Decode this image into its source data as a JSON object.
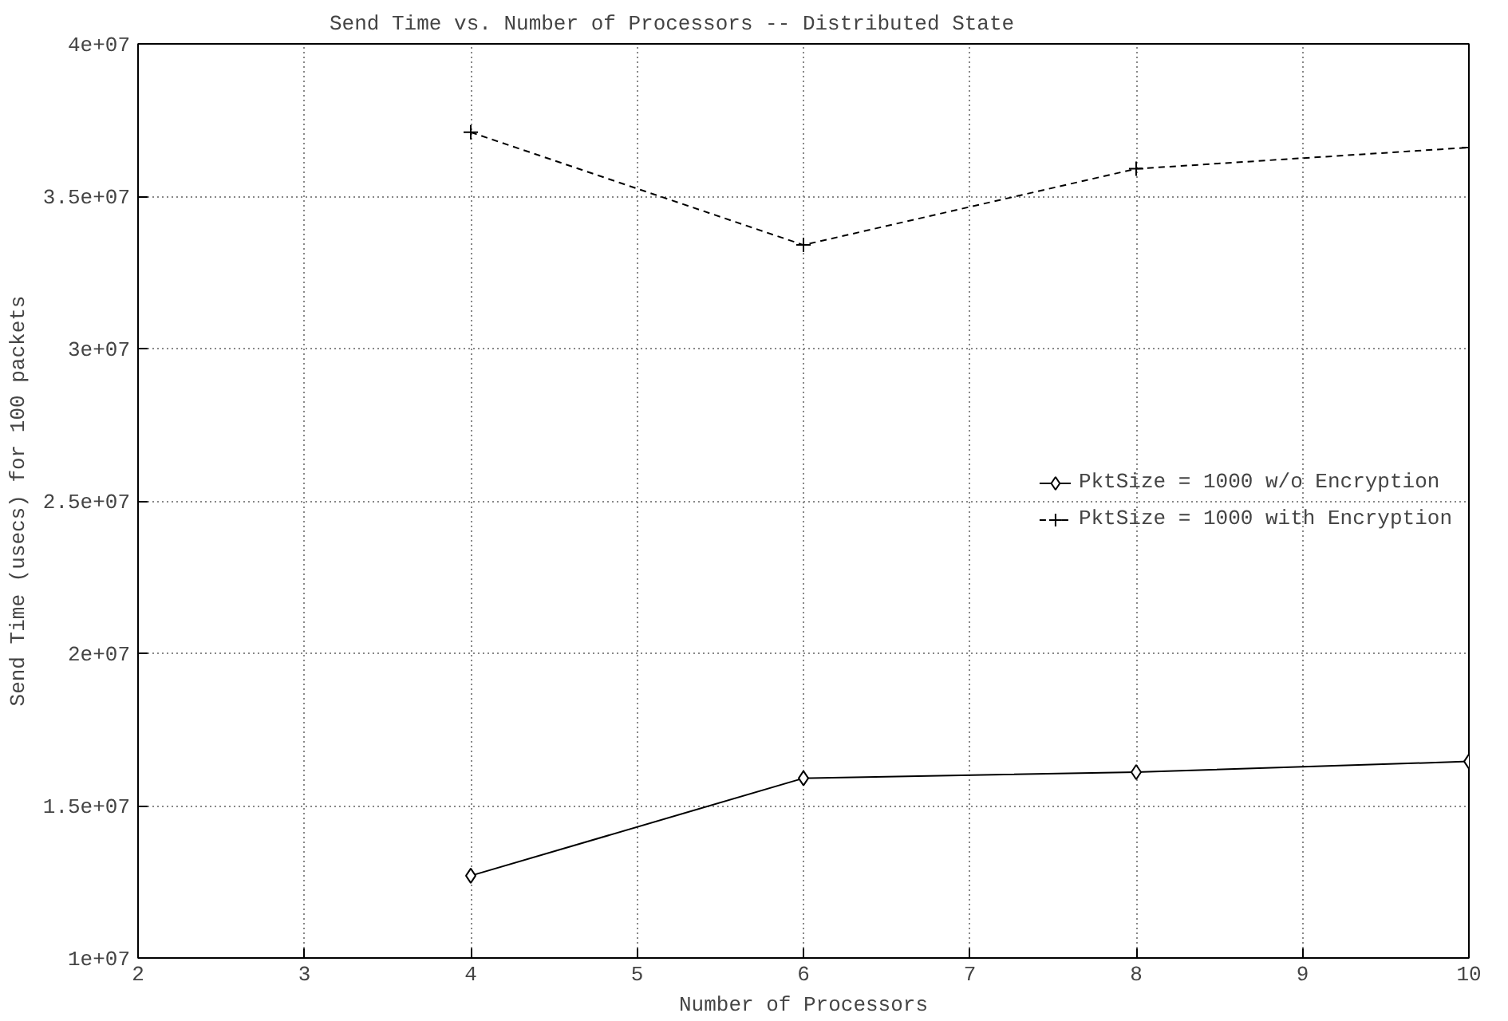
{
  "chart_data": {
    "type": "line",
    "title": "Send Time vs. Number of Processors -- Distributed State",
    "xlabel": "Number of Processors",
    "ylabel": "Send Time (usecs) for 100 packets",
    "x": [
      4,
      6,
      8,
      10
    ],
    "series": [
      {
        "name": "PktSize = 1000 w/o Encryption",
        "color": "#000000",
        "marker": "diamond",
        "line_style": "solid",
        "values": [
          12700000,
          15900000,
          16100000,
          16450000
        ]
      },
      {
        "name": "PktSize = 1000 with Encryption",
        "color": "#000000",
        "marker": "cross",
        "line_style": "dashed",
        "values": [
          37100000,
          33400000,
          35900000,
          36600000
        ]
      }
    ],
    "xlim": [
      2,
      10
    ],
    "xticks": [
      2,
      3,
      4,
      5,
      6,
      7,
      8,
      9,
      10
    ],
    "ylim": [
      10000000,
      40000000
    ],
    "yticks": [
      {
        "value": 10000000,
        "label": "1e+07"
      },
      {
        "value": 15000000,
        "label": "1.5e+07"
      },
      {
        "value": 20000000,
        "label": "2e+07"
      },
      {
        "value": 25000000,
        "label": "2.5e+07"
      },
      {
        "value": 30000000,
        "label": "3e+07"
      },
      {
        "value": 35000000,
        "label": "3.5e+07"
      },
      {
        "value": 40000000,
        "label": "4e+07"
      }
    ],
    "grid": true,
    "legend": "right"
  }
}
